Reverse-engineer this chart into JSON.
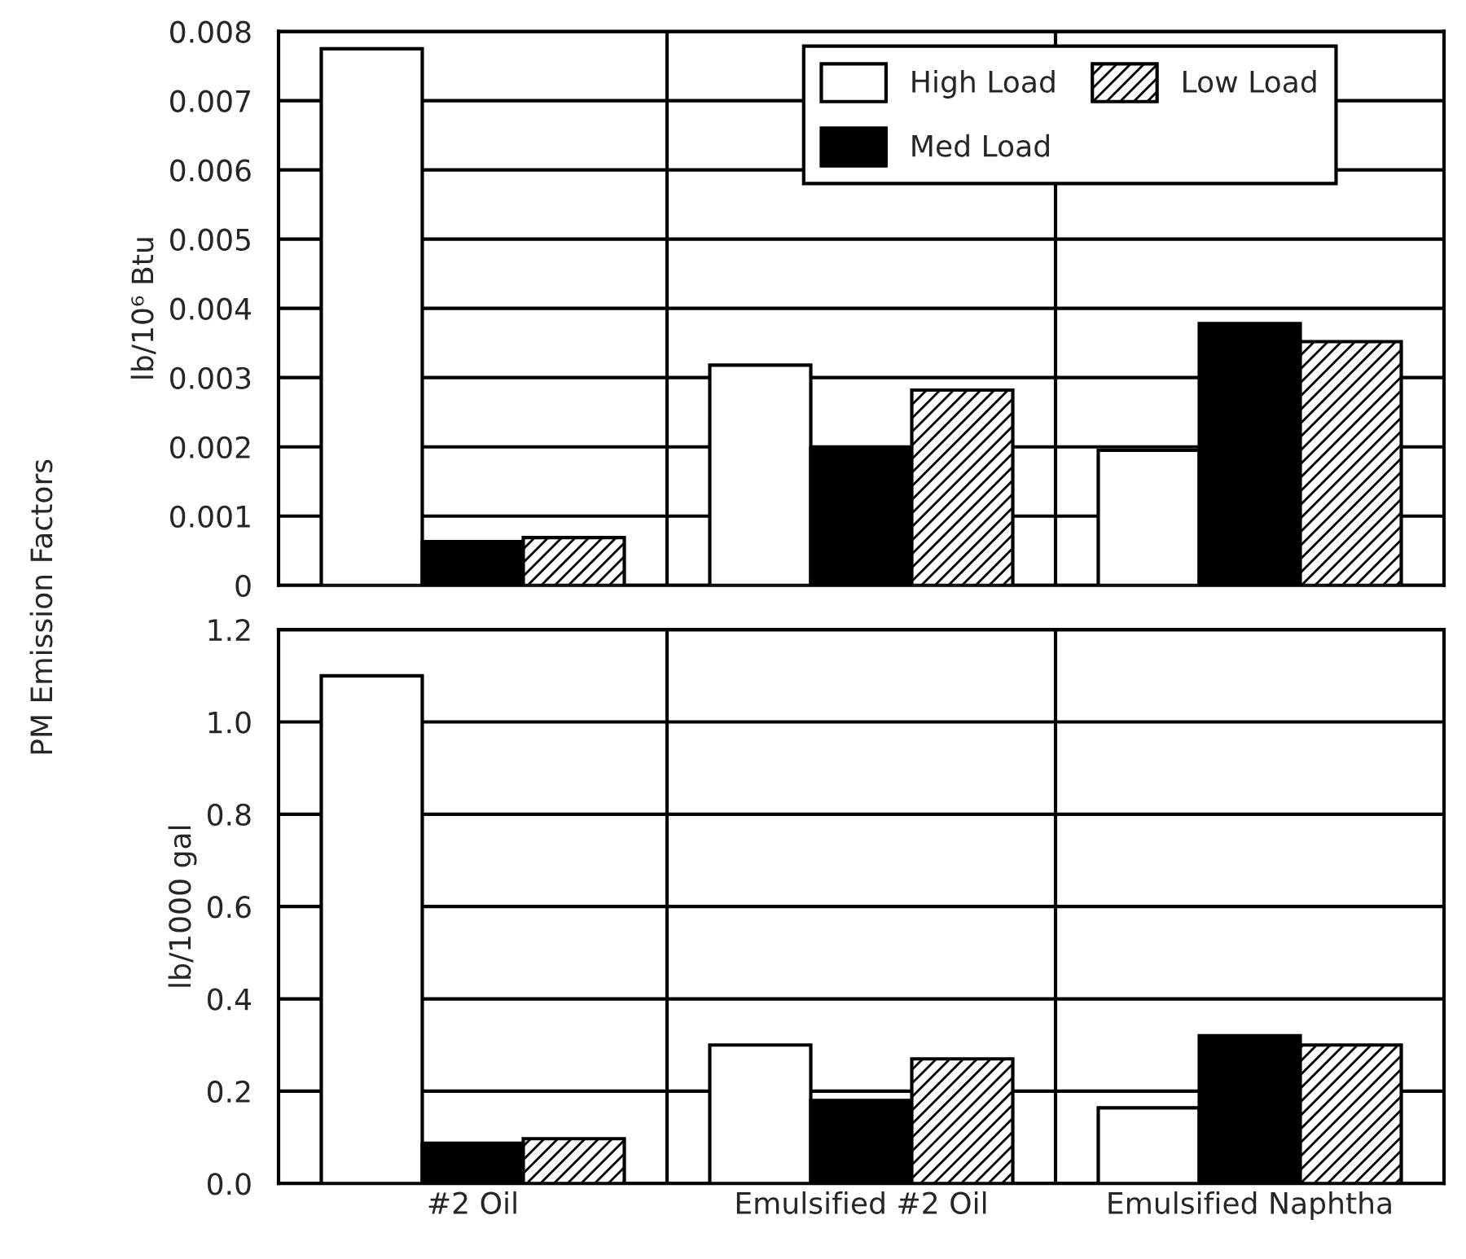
{
  "chart_data": [
    {
      "type": "bar",
      "ylabel": "lb/10⁶ Btu",
      "categories": [
        null,
        null,
        null
      ],
      "series": [
        {
          "name": "High Load",
          "color": "#ffffff",
          "values": [
            0.00775,
            0.00318,
            0.00195
          ]
        },
        {
          "name": "Med Load",
          "color": "#000000",
          "values": [
            0.00063,
            0.00198,
            0.00378
          ]
        },
        {
          "name": "Low Load",
          "color": "#000000",
          "values": [
            0.00069,
            0.00282,
            0.00352
          ]
        }
      ],
      "ylim": [
        0,
        0.008
      ],
      "yticks": [
        0,
        0.001,
        0.002,
        0.003,
        0.004,
        0.005,
        0.006,
        0.007,
        0.008
      ],
      "grid": true,
      "legend": "top right",
      "tick_labels": "y",
      "annotations": [
        "PM Emission Factors"
      ]
    },
    {
      "type": "bar",
      "ylabel": "lb/1000 gal",
      "categories": [
        "#2 Oil",
        "Emulsified #2 Oil",
        "Emulsified Naphtha"
      ],
      "series": [
        {
          "color": "#ffffff",
          "values": [
            1.1,
            0.3,
            0.164
          ]
        },
        {
          "color": "#000000",
          "values": [
            0.087,
            0.18,
            0.32
          ]
        },
        {
          "color": "#000000",
          "values": [
            0.097,
            0.27,
            0.3
          ]
        }
      ],
      "ylim": [
        0,
        1.2
      ],
      "yticks": [
        {
          "value": 0,
          "label": "0.0"
        },
        0.2,
        0.4,
        0.6,
        0.8,
        {
          "value": 1,
          "label": "1.0"
        },
        1.2
      ],
      "grid": true
    }
  ]
}
